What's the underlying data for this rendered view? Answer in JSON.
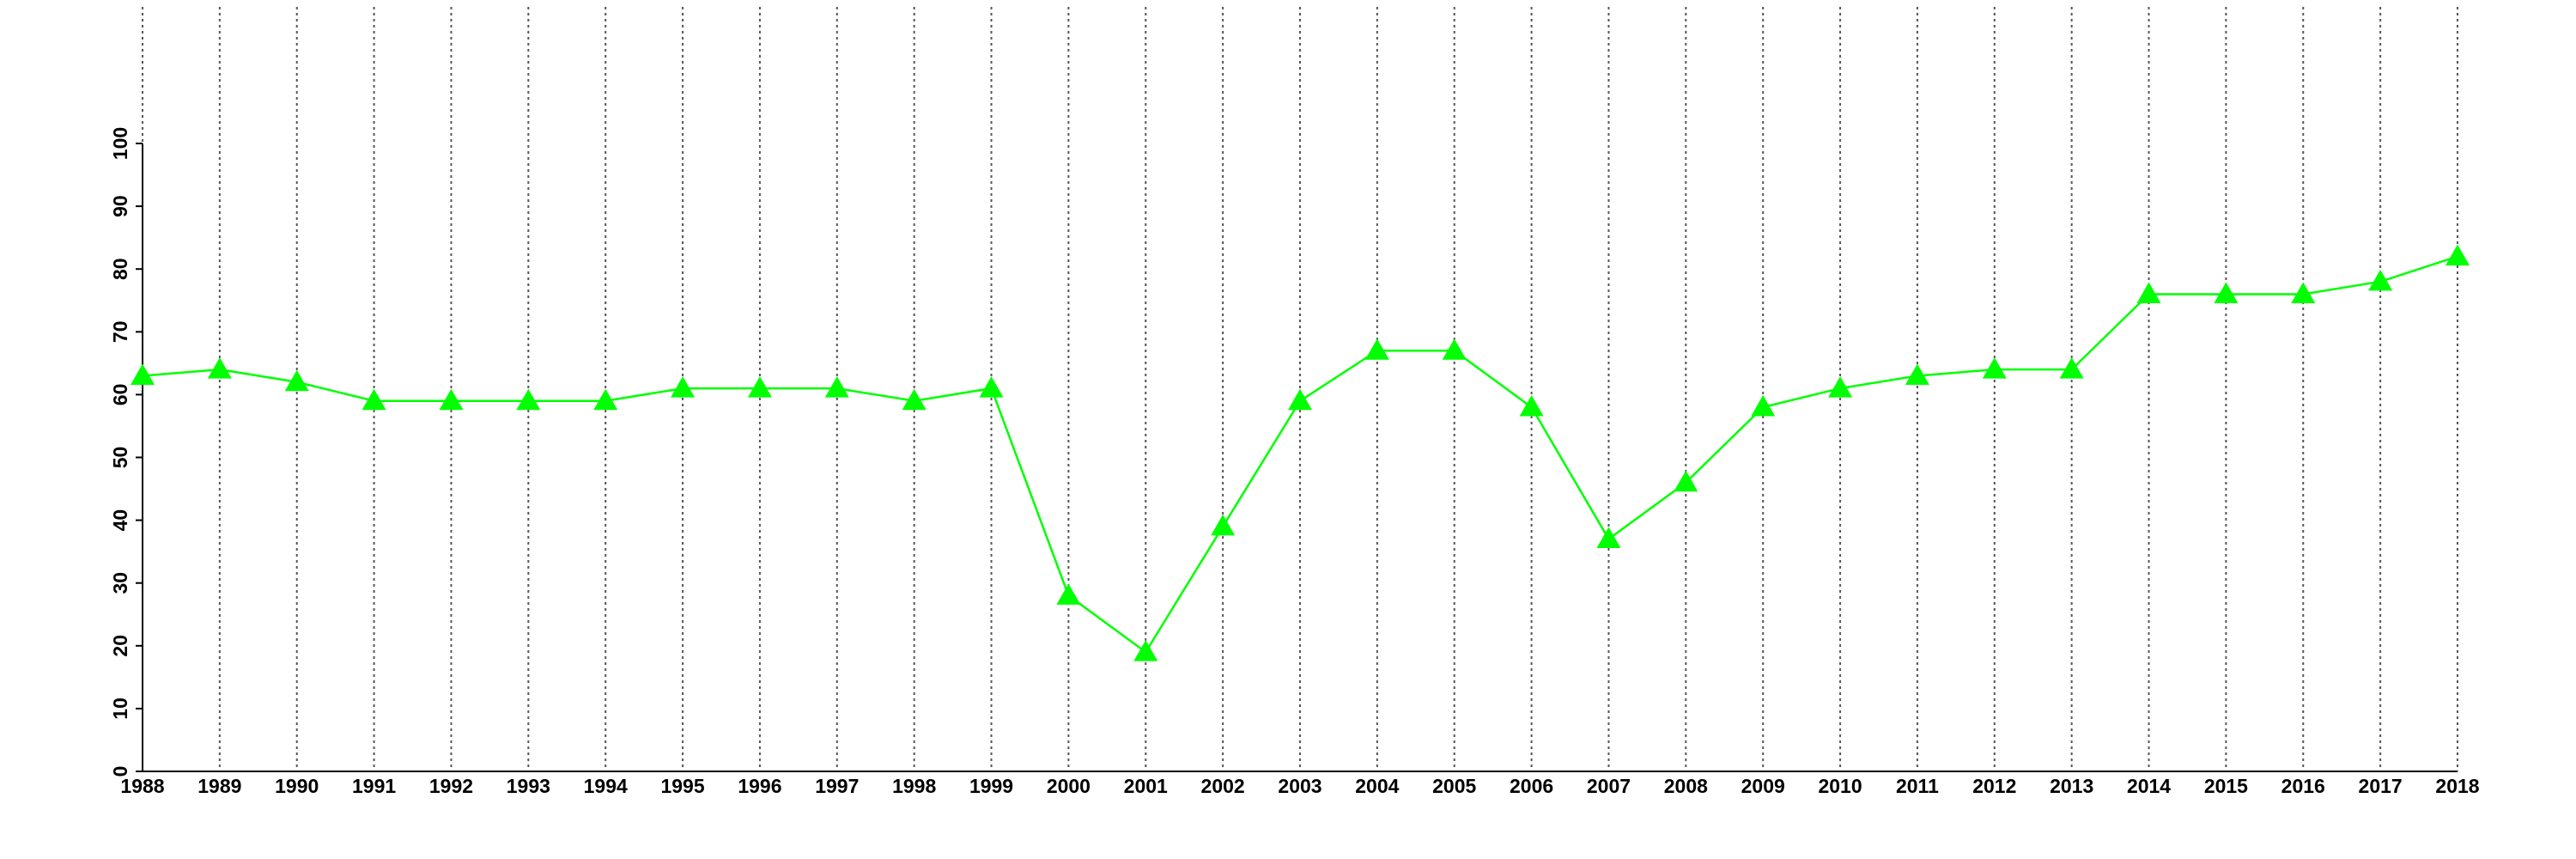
{
  "chart_data": {
    "type": "line",
    "x": [
      1988,
      1989,
      1990,
      1991,
      1992,
      1993,
      1994,
      1995,
      1996,
      1997,
      1998,
      1999,
      2000,
      2001,
      2002,
      2003,
      2004,
      2005,
      2006,
      2007,
      2008,
      2009,
      2010,
      2011,
      2012,
      2013,
      2014,
      2015,
      2016,
      2017,
      2018
    ],
    "series": [
      {
        "color": "#00ff00",
        "marker": "triangle",
        "values": [
          63,
          64,
          62,
          59,
          59,
          59,
          59,
          61,
          61,
          61,
          59,
          61,
          28,
          19,
          39,
          59,
          67,
          67,
          58,
          37,
          46,
          58,
          61,
          63,
          64,
          64,
          76,
          76,
          76,
          78,
          82
        ]
      }
    ],
    "xlim": [
      1988,
      2018
    ],
    "xticks": [
      1988,
      1989,
      1990,
      1991,
      1992,
      1993,
      1994,
      1995,
      1996,
      1997,
      1998,
      1999,
      2000,
      2001,
      2002,
      2003,
      2004,
      2005,
      2006,
      2007,
      2008,
      2009,
      2010,
      2011,
      2012,
      2013,
      2014,
      2015,
      2016,
      2017,
      2018
    ],
    "ylim": [
      0,
      100
    ],
    "yticks": [
      0,
      10,
      20,
      30,
      40,
      50,
      60,
      70,
      80,
      90,
      100
    ],
    "grid": true
  }
}
